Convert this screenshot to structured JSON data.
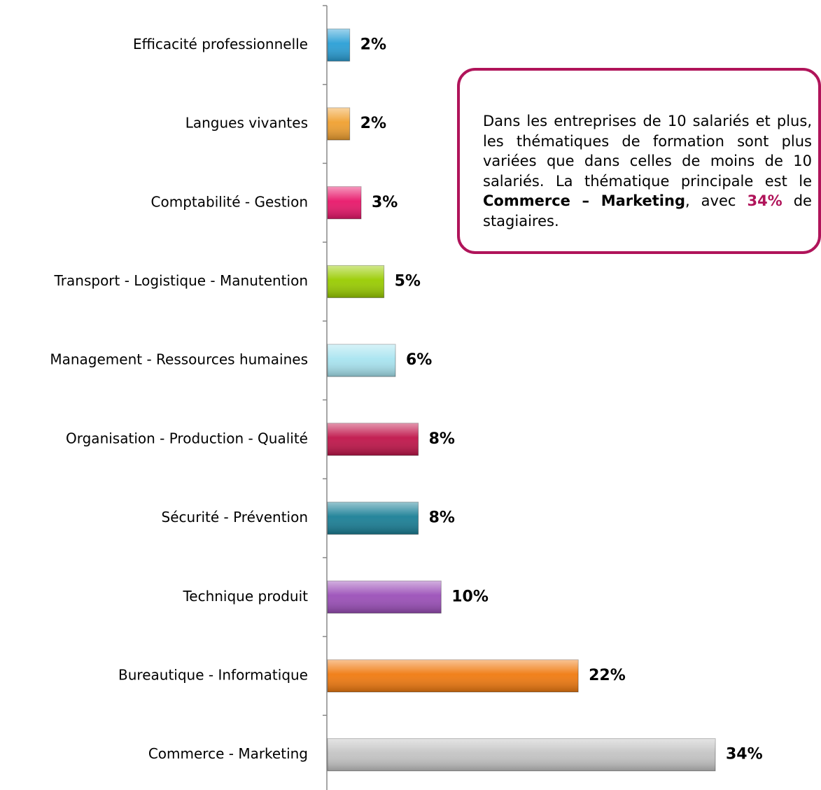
{
  "chart_data": {
    "type": "barh",
    "categories": [
      "Efficacité professionnelle",
      "Langues vivantes",
      "Comptabilité - Gestion",
      "Transport - Logistique - Manutention",
      "Management - Ressources humaines",
      "Organisation - Production - Qualité",
      "Sécurité - Prévention",
      "Technique produit",
      "Bureautique - Informatique",
      "Commerce - Marketing"
    ],
    "values": [
      2,
      2,
      3,
      5,
      6,
      8,
      8,
      10,
      22,
      34
    ],
    "value_labels": [
      "2%",
      "2%",
      "3%",
      "5%",
      "6%",
      "8%",
      "8%",
      "10%",
      "22%",
      "34%"
    ],
    "colors": [
      "#2a9fd6",
      "#f0a030",
      "#e8176a",
      "#99cc00",
      "#a8e4f0",
      "#c0154a",
      "#1a7f96",
      "#9b4fb8",
      "#f07a10",
      "#c4c4c4"
    ],
    "annotation": [
      "Dans les entreprises de 10 salariés et plus, les thématiques de formation sont plus variées que dans celles de moins de 10 salariés. La thématique principale est le ",
      "Commerce – Marketing",
      ", avec ",
      "34%",
      " de stagiaires."
    ]
  }
}
